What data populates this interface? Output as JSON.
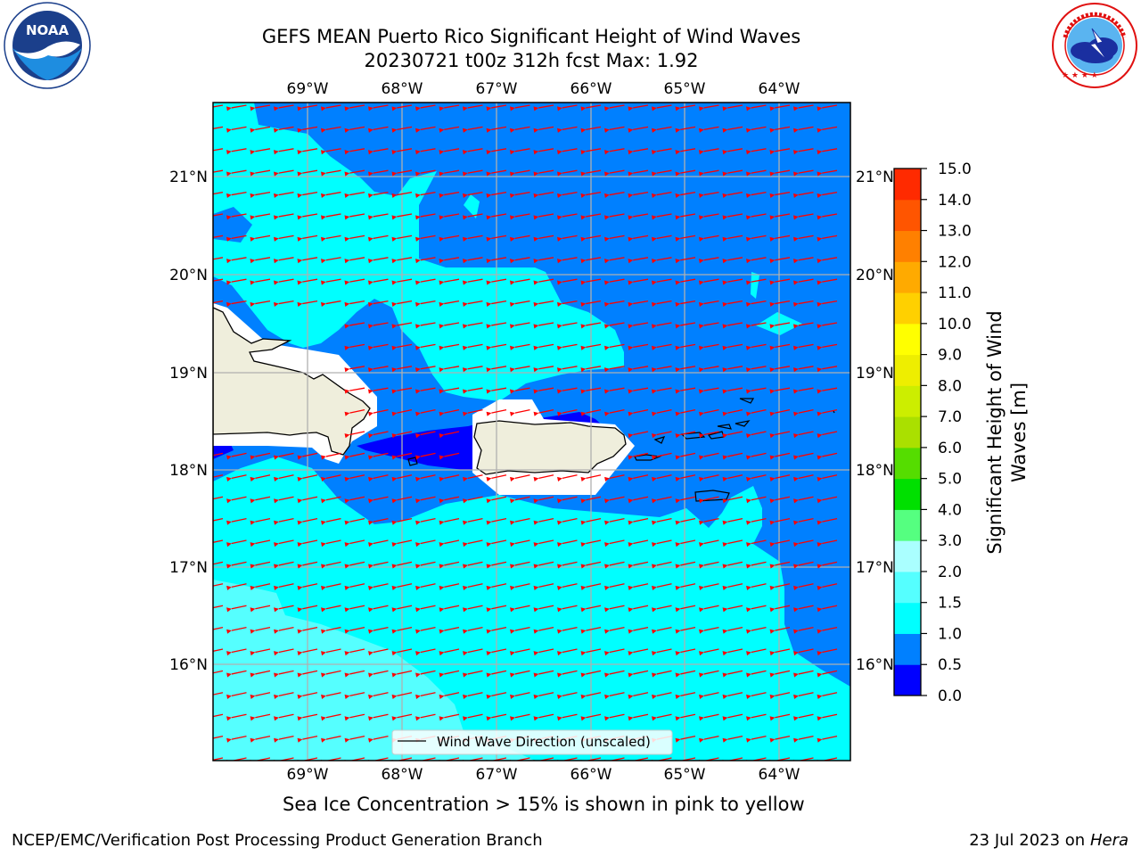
{
  "title": {
    "line1": "GEFS MEAN Puerto Rico Significant Height of Wind Waves",
    "line2": "20230721 t00z 312h fcst   Max: 1.92"
  },
  "logos": {
    "left": {
      "icon": "noaa-logo",
      "text": "NOAA",
      "ring_text": "NATIONAL OCEANIC AND ATMOSPHERIC ADMINISTRATION · U.S. DEPARTMENT OF COMMERCE"
    },
    "right": {
      "icon": "nws-logo",
      "ring_text": "NATIONAL WEATHER SERVICE"
    }
  },
  "map": {
    "lon_ticks": [
      "69°W",
      "68°W",
      "67°W",
      "66°W",
      "65°W",
      "64°W"
    ],
    "lat_ticks": [
      "21°N",
      "20°N",
      "19°N",
      "18°N",
      "17°N",
      "16°N"
    ],
    "legend_label": "Wind Wave Direction (unscaled)",
    "colors": {
      "land": "#efeedc",
      "ocean_0_05": "#0000ff",
      "ocean_05_10": "#0080ff",
      "ocean_10_15": "#00ffff",
      "ocean_15_20": "#55ffff",
      "arrow": "#ff0000",
      "grid": "#b0b0b0"
    }
  },
  "colorbar": {
    "label_line1": "Significant Height of Wind",
    "label_line2": "Waves [m]",
    "ticks": [
      "0.0",
      "0.5",
      "1.0",
      "1.5",
      "2.0",
      "3.0",
      "4.0",
      "5.0",
      "6.0",
      "7.0",
      "8.0",
      "9.0",
      "10.0",
      "11.0",
      "12.0",
      "13.0",
      "14.0",
      "15.0"
    ],
    "colors": [
      "#0000ff",
      "#0080ff",
      "#00ffff",
      "#55ffff",
      "#aaffff",
      "#55ff80",
      "#00e000",
      "#55dd00",
      "#aae000",
      "#ccee00",
      "#eeee00",
      "#ffff00",
      "#ffd000",
      "#ffaa00",
      "#ff8000",
      "#ff5500",
      "#ff2a00",
      "#ff0000"
    ]
  },
  "note": "Sea Ice Concentration > 15% is shown in pink to yellow",
  "footer": {
    "left": "NCEP/EMC/Verification Post Processing Product Generation Branch",
    "right_prefix": "23 Jul 2023 on ",
    "right_host": "Hera"
  }
}
